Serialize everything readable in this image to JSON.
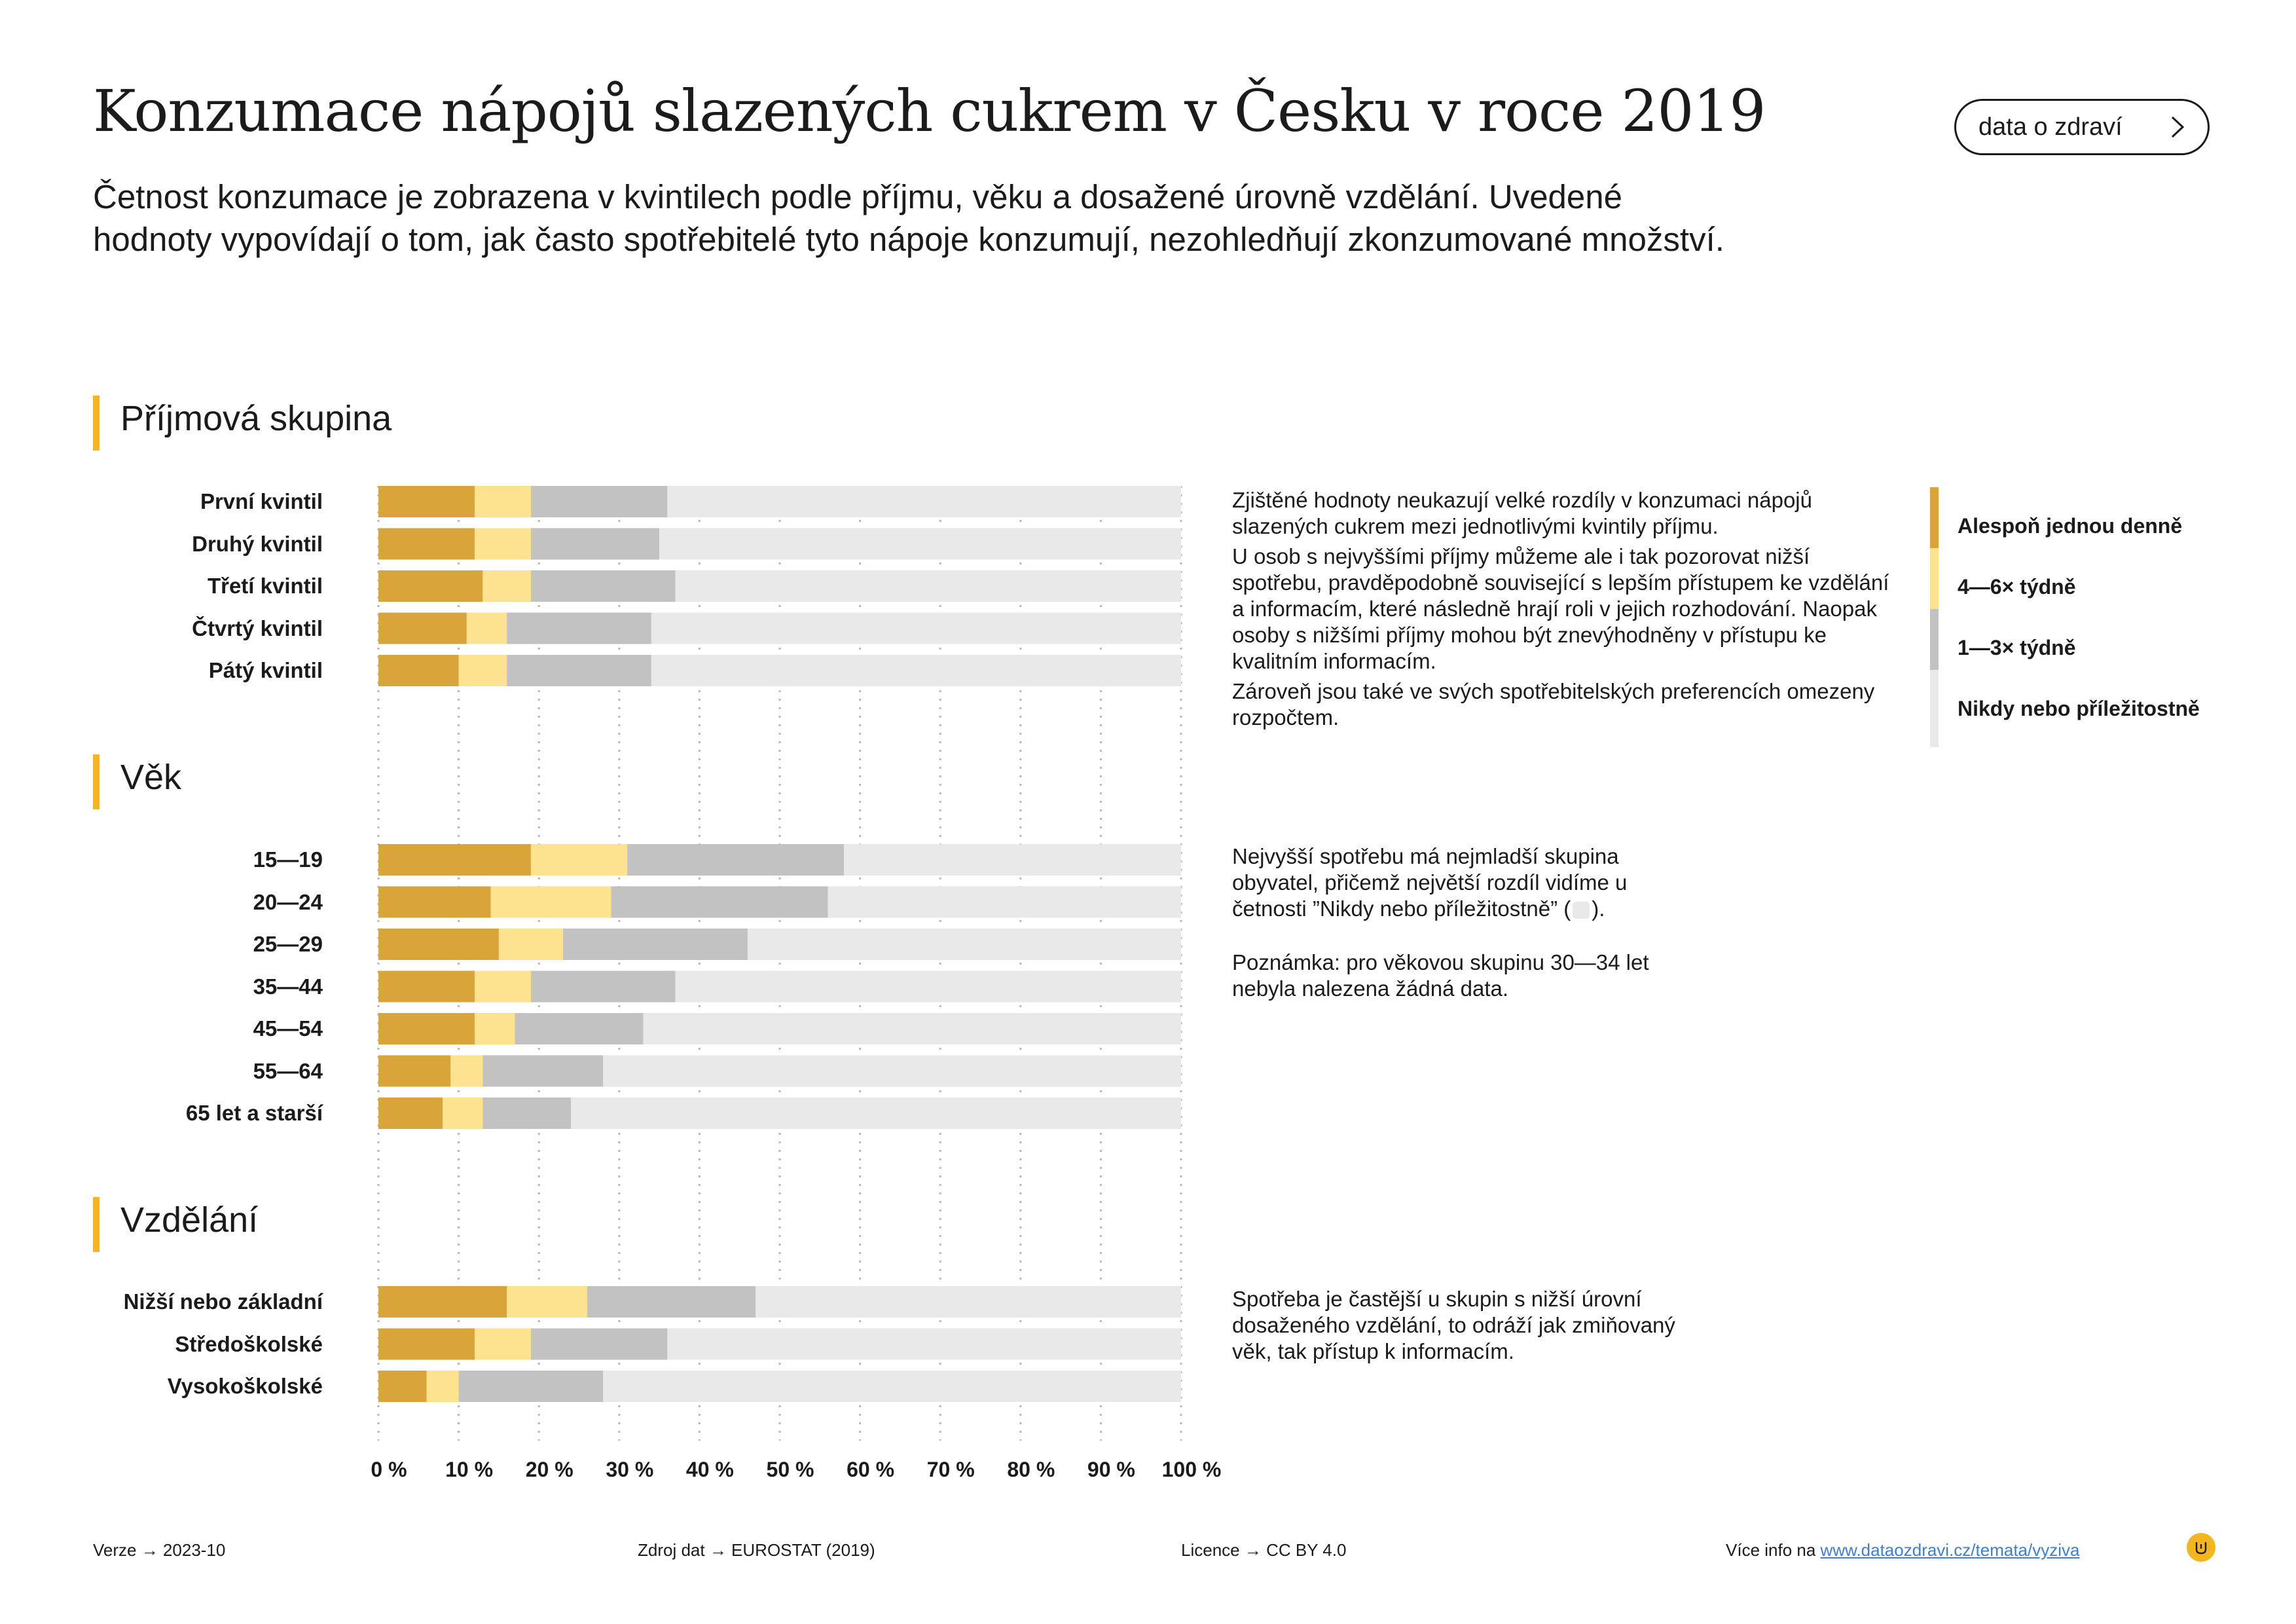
{
  "header": {
    "title": "Konzumace nápojů slazených cukrem v Česku v roce 2019",
    "subtitle": "Četnost konzumace je zobrazena v kvintilech podle příjmu, věku a dosažené úrovně vzdělání. Uvedené hodnoty vypovídají o tom, jak často spotřebitelé tyto nápoje konzumují, nezohledňují zkonzumované množství.",
    "brand_button": "data o zdraví"
  },
  "colors": {
    "daily": "#d9a53b",
    "weekly_4_6": "#fde28f",
    "weekly_1_3": "#c2c2c2",
    "never": "#e9e9e9",
    "accent": "#f3b61f"
  },
  "sections": {
    "income": "Příjmová skupina",
    "age": "Věk",
    "education": "Vzdělání"
  },
  "notes": {
    "income_p1": "Zjištěné hodnoty neukazují velké rozdíly v konzumaci nápojů slazených cukrem mezi jednotlivými kvintily příjmu.",
    "income_p2": "U osob s nejvyššími příjmy můžeme ale i tak pozorovat nižší spotřebu, pravděpodobně související s lepším přístupem ke vzdělání a informacím, které následně hrají roli v jejich rozhodování. Naopak osoby s nižšími příjmy mohou být znevýhodněny v přístupu ke kvalitním informacím.",
    "income_p3": "Zároveň jsou také ve svých spotřebitelských preferencích omezeny rozpočtem.",
    "age_p1_before": "Nejvyšší spotřebu má nejmladší skupina obyvatel, přičemž největší rozdíl vidíme u četnosti ”Nikdy nebo příležitostně” (",
    "age_p1_after": ").",
    "age_p2": "Poznámka: pro věkovou skupinu 30—34 let nebyla nalezena žádná data.",
    "education_p1": "Spotřeba je častější u skupin s nižší úrovní dosaženého vzdělání, to odráží jak zmiňovaný věk, tak přístup k informacím."
  },
  "legend": [
    {
      "label": "Alespoň jednou denně",
      "color": "#d9a53b"
    },
    {
      "label": "4—6× týdně",
      "color": "#fde28f"
    },
    {
      "label": "1—3× týdně",
      "color": "#c2c2c2"
    },
    {
      "label": "Nikdy nebo příležitostně",
      "color": "#e9e9e9"
    }
  ],
  "chart_data": {
    "type": "bar",
    "orientation": "horizontal",
    "stacked": true,
    "x_ticks": [
      "0 %",
      "10 %",
      "20 %",
      "30 %",
      "40 %",
      "50 %",
      "60 %",
      "70 %",
      "80 %",
      "90 %",
      "100 %"
    ],
    "xlim": [
      0,
      100
    ],
    "series_names": [
      "Alespoň jednou denně",
      "4—6× týdně",
      "1—3× týdně",
      "Nikdy nebo příležitostně"
    ],
    "groups": [
      {
        "title": "Příjmová skupina",
        "categories": [
          "První kvintil",
          "Druhý kvintil",
          "Třetí kvintil",
          "Čtvrtý kvintil",
          "Pátý kvintil"
        ],
        "values": [
          [
            12,
            7,
            17,
            64
          ],
          [
            12,
            7,
            16,
            65
          ],
          [
            13,
            6,
            18,
            63
          ],
          [
            11,
            5,
            18,
            66
          ],
          [
            10,
            6,
            18,
            66
          ]
        ]
      },
      {
        "title": "Věk",
        "categories": [
          "15—19",
          "20—24",
          "25—29",
          "35—44",
          "45—54",
          "55—64",
          "65 let a starší"
        ],
        "values": [
          [
            19,
            12,
            27,
            42
          ],
          [
            14,
            15,
            27,
            44
          ],
          [
            15,
            8,
            23,
            54
          ],
          [
            12,
            7,
            18,
            63
          ],
          [
            12,
            5,
            16,
            67
          ],
          [
            9,
            4,
            15,
            72
          ],
          [
            8,
            5,
            11,
            76
          ]
        ]
      },
      {
        "title": "Vzdělání",
        "categories": [
          "Nižší nebo základní",
          "Středoškolské",
          "Vysokoškolské"
        ],
        "values": [
          [
            16,
            10,
            21,
            53
          ],
          [
            12,
            7,
            17,
            64
          ],
          [
            6,
            4,
            18,
            72
          ]
        ]
      }
    ]
  },
  "footer": {
    "version": "Verze  →  2023-10",
    "source": "Zdroj dat  →  EUROSTAT (2019)",
    "license": "Licence  →  CC BY 4.0",
    "more_prefix": "Více info na ",
    "more_link": "www.dataozdravi.cz/temata/vyziva"
  }
}
